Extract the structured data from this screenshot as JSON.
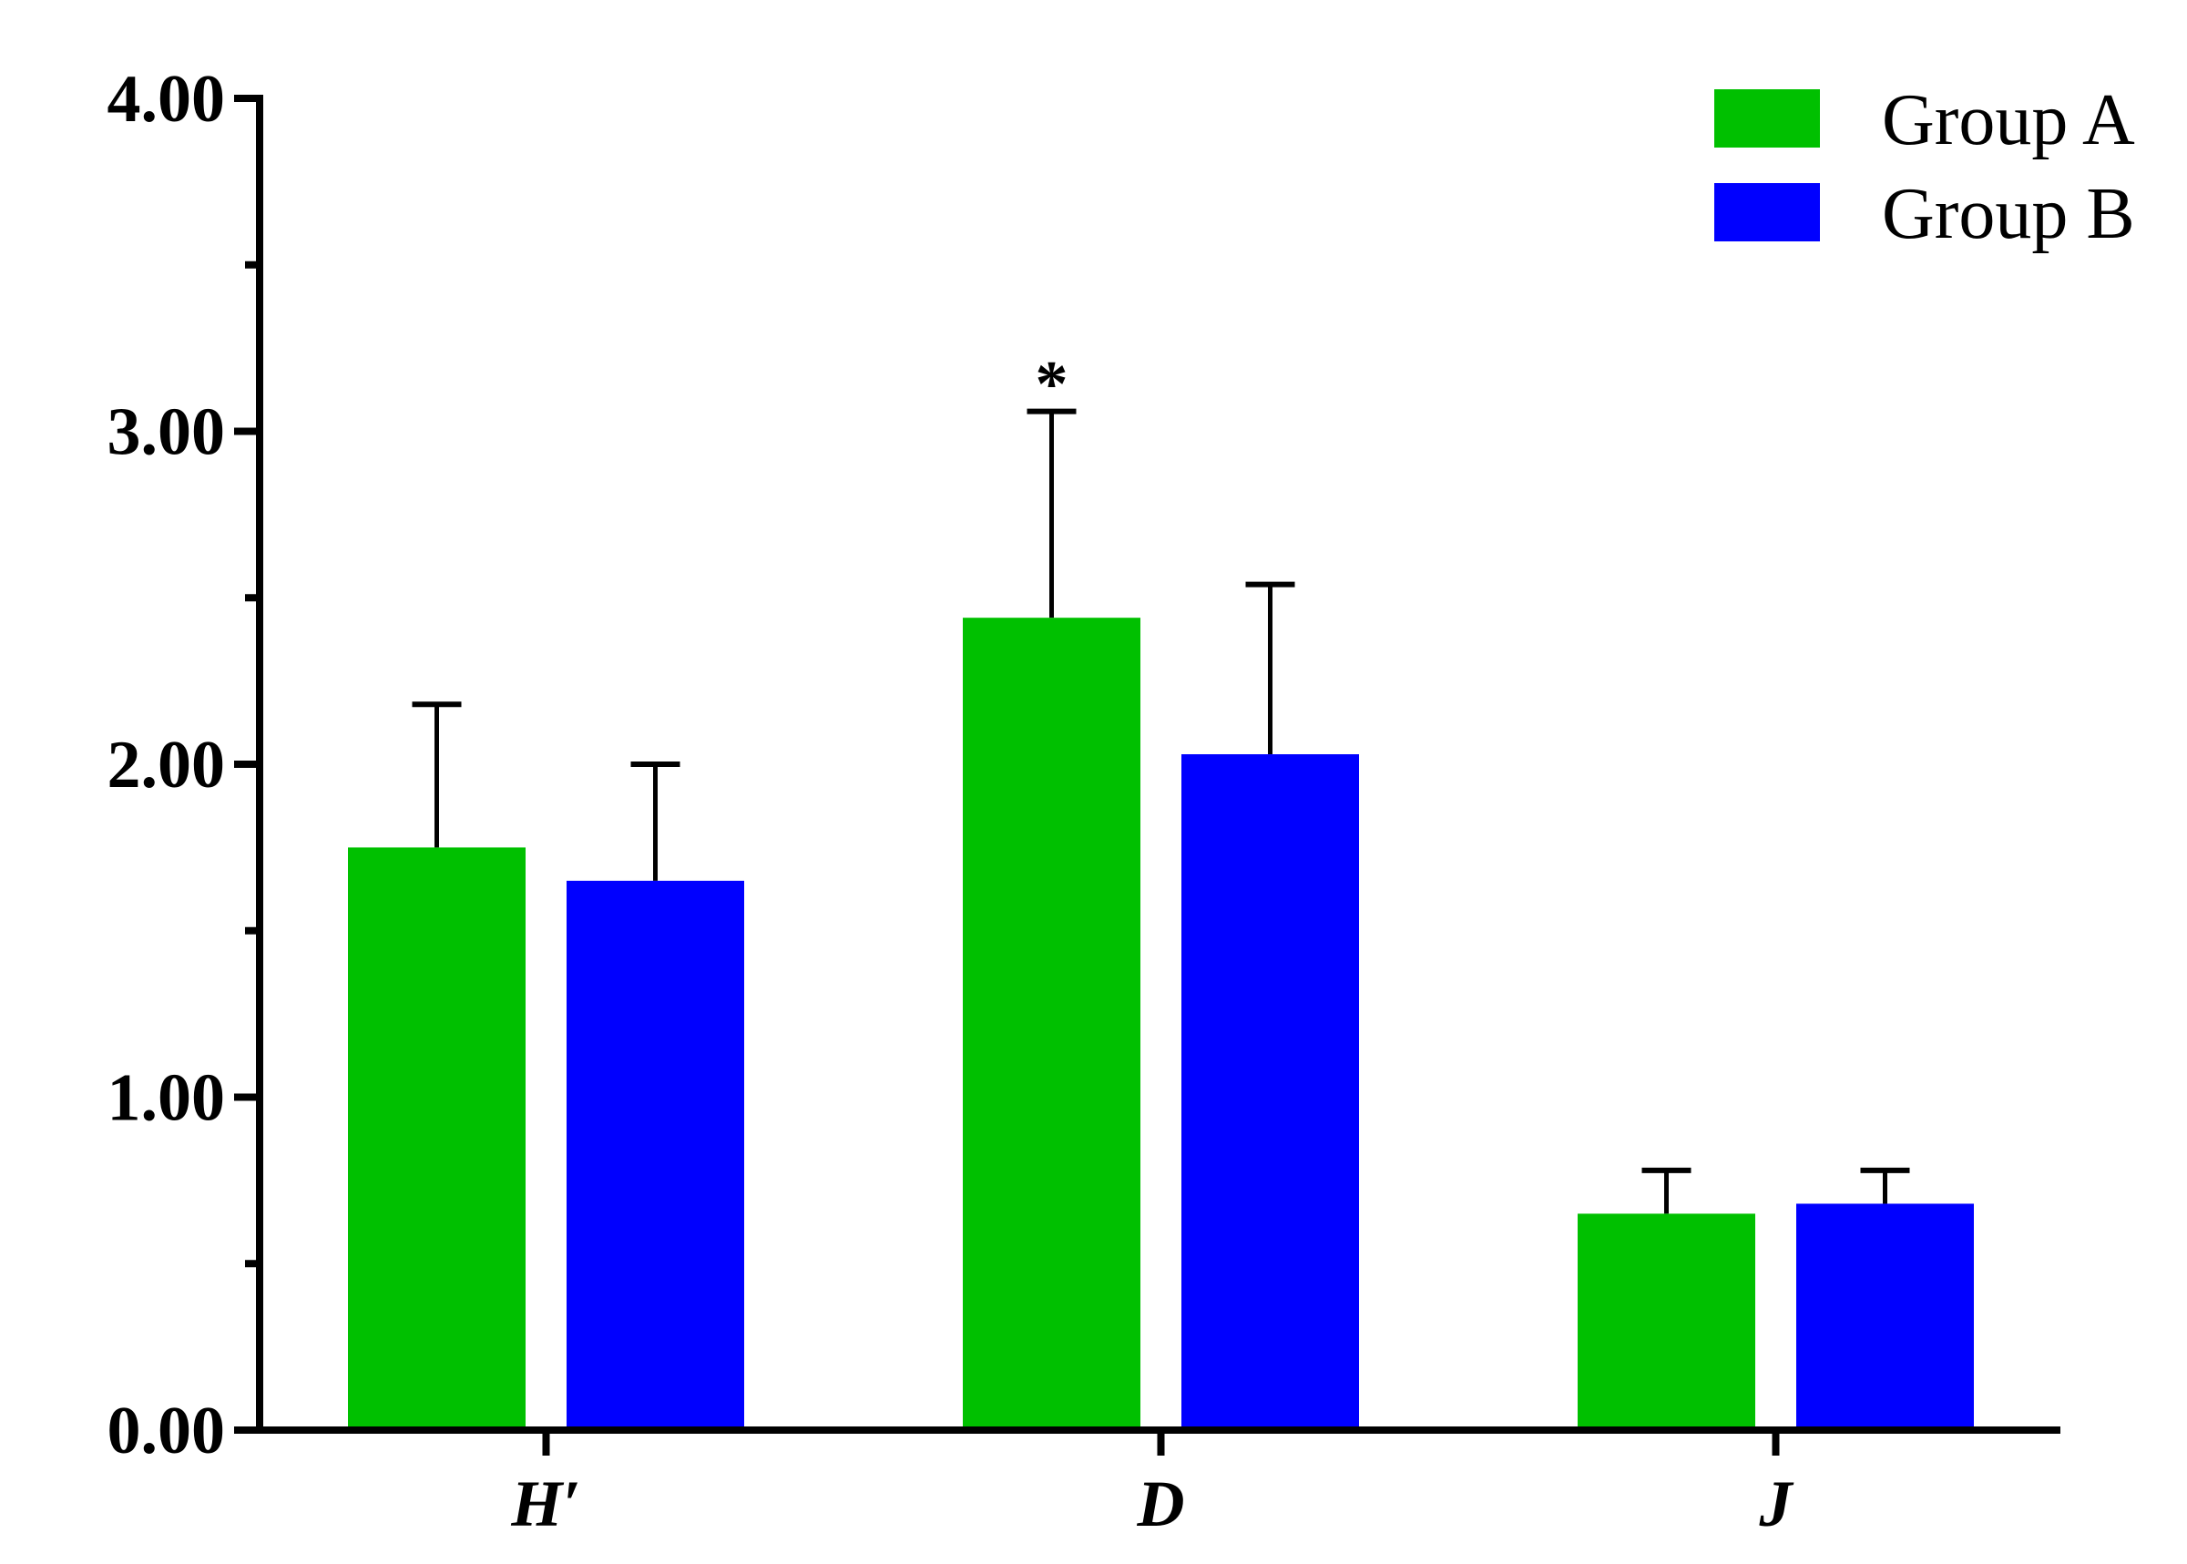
{
  "chart_data": {
    "type": "bar",
    "categories": [
      "H′",
      "D",
      "J"
    ],
    "series": [
      {
        "name": "Group A",
        "color": "#00c000",
        "values": [
          1.75,
          2.44,
          0.65
        ],
        "errors": [
          0.43,
          0.62,
          0.13
        ]
      },
      {
        "name": "Group B",
        "color": "#0000ff",
        "values": [
          1.65,
          2.03,
          0.68
        ],
        "errors": [
          0.35,
          0.51,
          0.1
        ]
      }
    ],
    "annotations": [
      {
        "category": "D",
        "series": "Group A",
        "text": "*"
      }
    ],
    "yticks": [
      "0.00",
      "1.00",
      "2.00",
      "3.00",
      "4.00"
    ],
    "ylim": [
      0,
      4
    ],
    "title": "",
    "xlabel": "",
    "ylabel": "",
    "grid": false,
    "legend_position": "top-right"
  }
}
